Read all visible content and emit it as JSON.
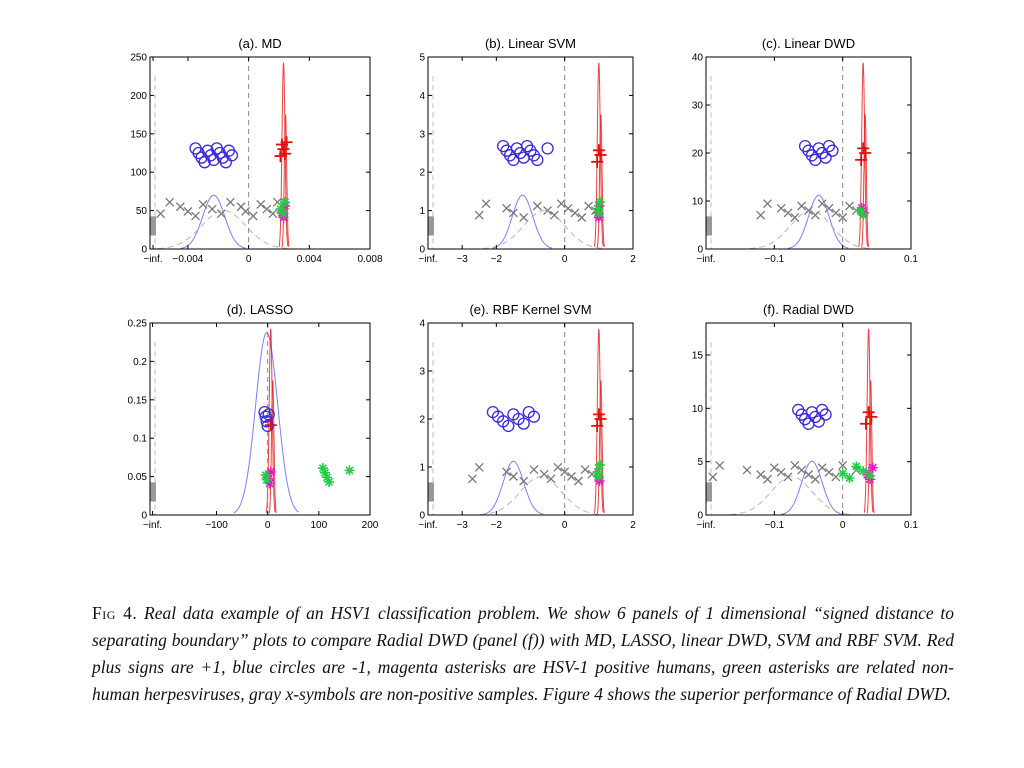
{
  "chart_data": [
    {
      "type": "scatter",
      "title": "(a). MD",
      "xlim": [
        -0.0065,
        0.008
      ],
      "ylim": [
        0,
        250
      ],
      "x_ticks": [
        "-inf.",
        "-0.004",
        "0",
        "0.004",
        "0.008"
      ],
      "x_tick_values": [
        -0.0063,
        -0.004,
        0,
        0.004,
        0.008
      ],
      "y_ticks": [
        0,
        50,
        100,
        150,
        200,
        250
      ],
      "zero_line": 0,
      "series": [
        {
          "marker": "circle",
          "color": "#3a2bd6",
          "y_level": 122,
          "x": [
            -0.0035,
            -0.0033,
            -0.0031,
            -0.0029,
            -0.0027,
            -0.0025,
            -0.0023,
            -0.0021,
            -0.0019,
            -0.0017,
            -0.0015,
            -0.0013,
            -0.0011
          ]
        },
        {
          "marker": "plus",
          "color": "#e01010",
          "y_level": 130,
          "x": [
            0.0021,
            0.0022,
            0.0023,
            0.0024,
            0.0025
          ]
        },
        {
          "marker": "x",
          "color": "#777777",
          "y_level": 52,
          "x": [
            -0.0058,
            -0.0052,
            -0.0045,
            -0.004,
            -0.0035,
            -0.003,
            -0.0024,
            -0.0018,
            -0.0012,
            -0.0005,
            -0.0002,
            0.0003,
            0.0008,
            0.0012,
            0.0016,
            0.0019
          ]
        },
        {
          "marker": "asterisk",
          "color": "#ee11cc",
          "y_level": 50,
          "x": [
            0.0022,
            0.0023,
            0.0024
          ]
        },
        {
          "marker": "asterisk",
          "color": "#22cc44",
          "y_level": 52,
          "x": [
            0.0021,
            0.0023,
            0.0024
          ]
        }
      ]
    },
    {
      "type": "scatter",
      "title": "(b). Linear SVM",
      "xlim": [
        -4,
        2
      ],
      "ylim": [
        0,
        5
      ],
      "x_ticks": [
        "-inf.",
        "-3",
        "-2",
        "0",
        "2"
      ],
      "x_tick_values": [
        -4,
        -3,
        -2,
        0,
        2
      ],
      "y_ticks": [
        0,
        1,
        2,
        3,
        4,
        5
      ],
      "zero_line": 0,
      "series": [
        {
          "marker": "circle",
          "color": "#3a2bd6",
          "y_level": 2.5,
          "x": [
            -1.8,
            -1.7,
            -1.6,
            -1.5,
            -1.4,
            -1.3,
            -1.2,
            -1.1,
            -1.0,
            -0.9,
            -0.8,
            -0.5
          ]
        },
        {
          "marker": "plus",
          "color": "#e01010",
          "y_level": 2.45,
          "x": [
            0.95,
            1.0,
            1.05
          ]
        },
        {
          "marker": "x",
          "color": "#777777",
          "y_level": 1.0,
          "x": [
            -2.5,
            -2.3,
            -1.7,
            -1.5,
            -1.2,
            -0.8,
            -0.5,
            -0.3,
            -0.1,
            0.1,
            0.3,
            0.5,
            0.7,
            0.9
          ]
        },
        {
          "marker": "asterisk",
          "color": "#ee11cc",
          "y_level": 1.0,
          "x": [
            0.98,
            1.0,
            1.02
          ]
        },
        {
          "marker": "asterisk",
          "color": "#22cc44",
          "y_level": 1.05,
          "x": [
            0.97,
            1.0,
            1.03
          ]
        }
      ]
    },
    {
      "type": "scatter",
      "title": "(c). Linear DWD",
      "xlim": [
        -0.2,
        0.1
      ],
      "ylim": [
        0,
        40
      ],
      "x_ticks": [
        "-inf.",
        "-0.1",
        "0",
        "0.1"
      ],
      "x_tick_values": [
        -0.2,
        -0.1,
        0,
        0.1
      ],
      "y_ticks": [
        0,
        10,
        20,
        30,
        40
      ],
      "zero_line": 0,
      "series": [
        {
          "marker": "circle",
          "color": "#3a2bd6",
          "y_level": 20,
          "x": [
            -0.055,
            -0.05,
            -0.045,
            -0.04,
            -0.035,
            -0.03,
            -0.025,
            -0.02,
            -0.015
          ]
        },
        {
          "marker": "plus",
          "color": "#e01010",
          "y_level": 20,
          "x": [
            0.027,
            0.03,
            0.033
          ]
        },
        {
          "marker": "x",
          "color": "#777777",
          "y_level": 8,
          "x": [
            -0.12,
            -0.11,
            -0.09,
            -0.08,
            -0.07,
            -0.06,
            -0.05,
            -0.04,
            -0.03,
            -0.02,
            -0.01,
            0.0,
            0.01,
            0.02
          ]
        },
        {
          "marker": "asterisk",
          "color": "#ee11cc",
          "y_level": 9,
          "x": [
            0.028,
            0.031
          ]
        },
        {
          "marker": "asterisk",
          "color": "#22cc44",
          "y_level": 8,
          "x": [
            0.026,
            0.03
          ]
        }
      ]
    },
    {
      "type": "scatter",
      "title": "(d). LASSO",
      "xlim": [
        -230,
        200
      ],
      "ylim": [
        0,
        0.25
      ],
      "x_ticks": [
        "-inf.",
        "-100",
        "0",
        "100",
        "200"
      ],
      "x_tick_values": [
        -225,
        -100,
        0,
        100,
        200
      ],
      "y_ticks": [
        0,
        0.05,
        0.1,
        0.15,
        0.2,
        0.25
      ],
      "zero_line": 0,
      "series": [
        {
          "marker": "circle",
          "color": "#3a2bd6",
          "y_level": 0.125,
          "x": [
            -6,
            -4,
            -2,
            0,
            2
          ]
        },
        {
          "marker": "plus",
          "color": "#e01010",
          "y_level": 0.126,
          "x": [
            6
          ]
        },
        {
          "marker": "x",
          "color": "#777777",
          "y_level": 0.05,
          "x": []
        },
        {
          "marker": "asterisk",
          "color": "#ee11cc",
          "y_level": 0.05,
          "x": [
            2,
            4,
            6
          ]
        },
        {
          "marker": "asterisk",
          "color": "#22cc44",
          "y_level": 0.052,
          "x": [
            -4,
            -2,
            108,
            112,
            116,
            120,
            160
          ]
        }
      ]
    },
    {
      "type": "scatter",
      "title": "(e). RBF Kernel SVM",
      "xlim": [
        -4,
        2
      ],
      "ylim": [
        0,
        4
      ],
      "x_ticks": [
        "-inf.",
        "-3",
        "-2",
        "0",
        "2"
      ],
      "x_tick_values": [
        -4,
        -3,
        -2,
        0,
        2
      ],
      "y_ticks": [
        0,
        1,
        2,
        3,
        4
      ],
      "zero_line": 0,
      "series": [
        {
          "marker": "circle",
          "color": "#3a2bd6",
          "y_level": 2.0,
          "x": [
            -2.1,
            -1.95,
            -1.8,
            -1.65,
            -1.5,
            -1.35,
            -1.2,
            -1.05,
            -0.9
          ]
        },
        {
          "marker": "plus",
          "color": "#e01010",
          "y_level": 2.0,
          "x": [
            0.95,
            1.0,
            1.05
          ]
        },
        {
          "marker": "x",
          "color": "#777777",
          "y_level": 0.85,
          "x": [
            -2.7,
            -2.5,
            -1.7,
            -1.5,
            -1.2,
            -0.9,
            -0.6,
            -0.4,
            -0.2,
            0.0,
            0.2,
            0.4,
            0.6,
            0.8
          ]
        },
        {
          "marker": "asterisk",
          "color": "#ee11cc",
          "y_level": 0.85,
          "x": [
            0.98,
            1.02
          ]
        },
        {
          "marker": "asterisk",
          "color": "#22cc44",
          "y_level": 0.9,
          "x": [
            0.97,
            1.0,
            1.03
          ]
        }
      ]
    },
    {
      "type": "scatter",
      "title": "(f). Radial DWD",
      "xlim": [
        -0.2,
        0.1
      ],
      "ylim": [
        0,
        18
      ],
      "x_ticks": [
        "-inf.",
        "-0.1",
        "0",
        "0.1"
      ],
      "x_tick_values": [
        -0.2,
        -0.1,
        0,
        0.1
      ],
      "y_ticks": [
        0,
        5,
        10,
        15
      ],
      "zero_line": 0,
      "series": [
        {
          "marker": "circle",
          "color": "#3a2bd6",
          "y_level": 9.2,
          "x": [
            -0.065,
            -0.06,
            -0.055,
            -0.05,
            -0.045,
            -0.04,
            -0.035,
            -0.03,
            -0.025
          ]
        },
        {
          "marker": "plus",
          "color": "#e01010",
          "y_level": 9.2,
          "x": [
            0.034,
            0.038,
            0.042
          ]
        },
        {
          "marker": "x",
          "color": "#777777",
          "y_level": 4.0,
          "x": [
            -0.19,
            -0.18,
            -0.14,
            -0.12,
            -0.11,
            -0.1,
            -0.09,
            -0.08,
            -0.07,
            -0.06,
            -0.05,
            -0.04,
            -0.03,
            -0.02,
            -0.01,
            0.0,
            0.02
          ]
        },
        {
          "marker": "asterisk",
          "color": "#ee11cc",
          "y_level": 4.0,
          "x": [
            0.036,
            0.04,
            0.044
          ]
        },
        {
          "marker": "asterisk",
          "color": "#22cc44",
          "y_level": 3.9,
          "x": [
            0.0,
            0.01,
            0.02,
            0.03,
            0.04
          ]
        }
      ]
    }
  ],
  "caption": {
    "label": "Fig 4.",
    "text": "Real data example of an HSV1 classification problem. We show 6 panels of 1 dimensional “signed distance to separating boundary” plots to compare Radial DWD (panel (f)) with MD, LASSO, linear DWD, SVM and RBF SVM. Red plus signs are +1, blue circles are -1, magenta asterisks are HSV-1 positive humans, green asterisks are related non-human herpesviruses, gray x-symbols are non-positive samples. Figure 4 shows the superior performance of Radial DWD."
  }
}
